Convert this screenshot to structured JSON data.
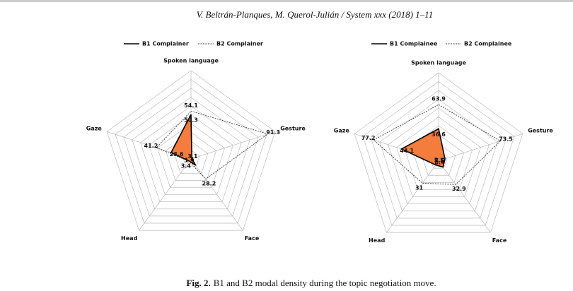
{
  "header": "V. Beltrán-Planques, M. Querol-Julián / System xxx (2018) 1–11",
  "caption": {
    "label": "Fig. 2.",
    "text": "B1 and B2 modal density during the topic negotiation move."
  },
  "chart_data": [
    {
      "type": "radar",
      "axes": [
        "Spoken language",
        "Gesture",
        "Face",
        "Head",
        "Gaze"
      ],
      "rlim": [
        0,
        100
      ],
      "rticks": [
        10,
        20,
        30,
        40,
        50,
        60,
        70,
        80,
        90,
        100
      ],
      "series": [
        {
          "name": "B1 Complainer",
          "color": "#000000",
          "fill": "#f47c3c",
          "values": [
            50.3,
            1,
            9,
            3.1,
            23.6
          ]
        },
        {
          "name": "B2 Complainer",
          "color": "#333333",
          "dash": true,
          "values": [
            54.1,
            91.3,
            28.2,
            3.4,
            41.2
          ]
        }
      ]
    },
    {
      "type": "radar",
      "axes": [
        "Spoken language",
        "Gesture",
        "Face",
        "Head",
        "Gaze"
      ],
      "rlim": [
        0,
        100
      ],
      "rticks": [
        10,
        20,
        30,
        40,
        50,
        60,
        70,
        80,
        90,
        100
      ],
      "series": [
        {
          "name": "B1 Complainee",
          "color": "#000000",
          "fill": "#f47c3c",
          "values": [
            36.6,
            7.6,
            8.4,
            5.5,
            44.1
          ]
        },
        {
          "name": "B2 Complainee",
          "color": "#333333",
          "dash": true,
          "values": [
            63.9,
            73.5,
            32.9,
            31,
            77.2
          ]
        }
      ]
    }
  ]
}
